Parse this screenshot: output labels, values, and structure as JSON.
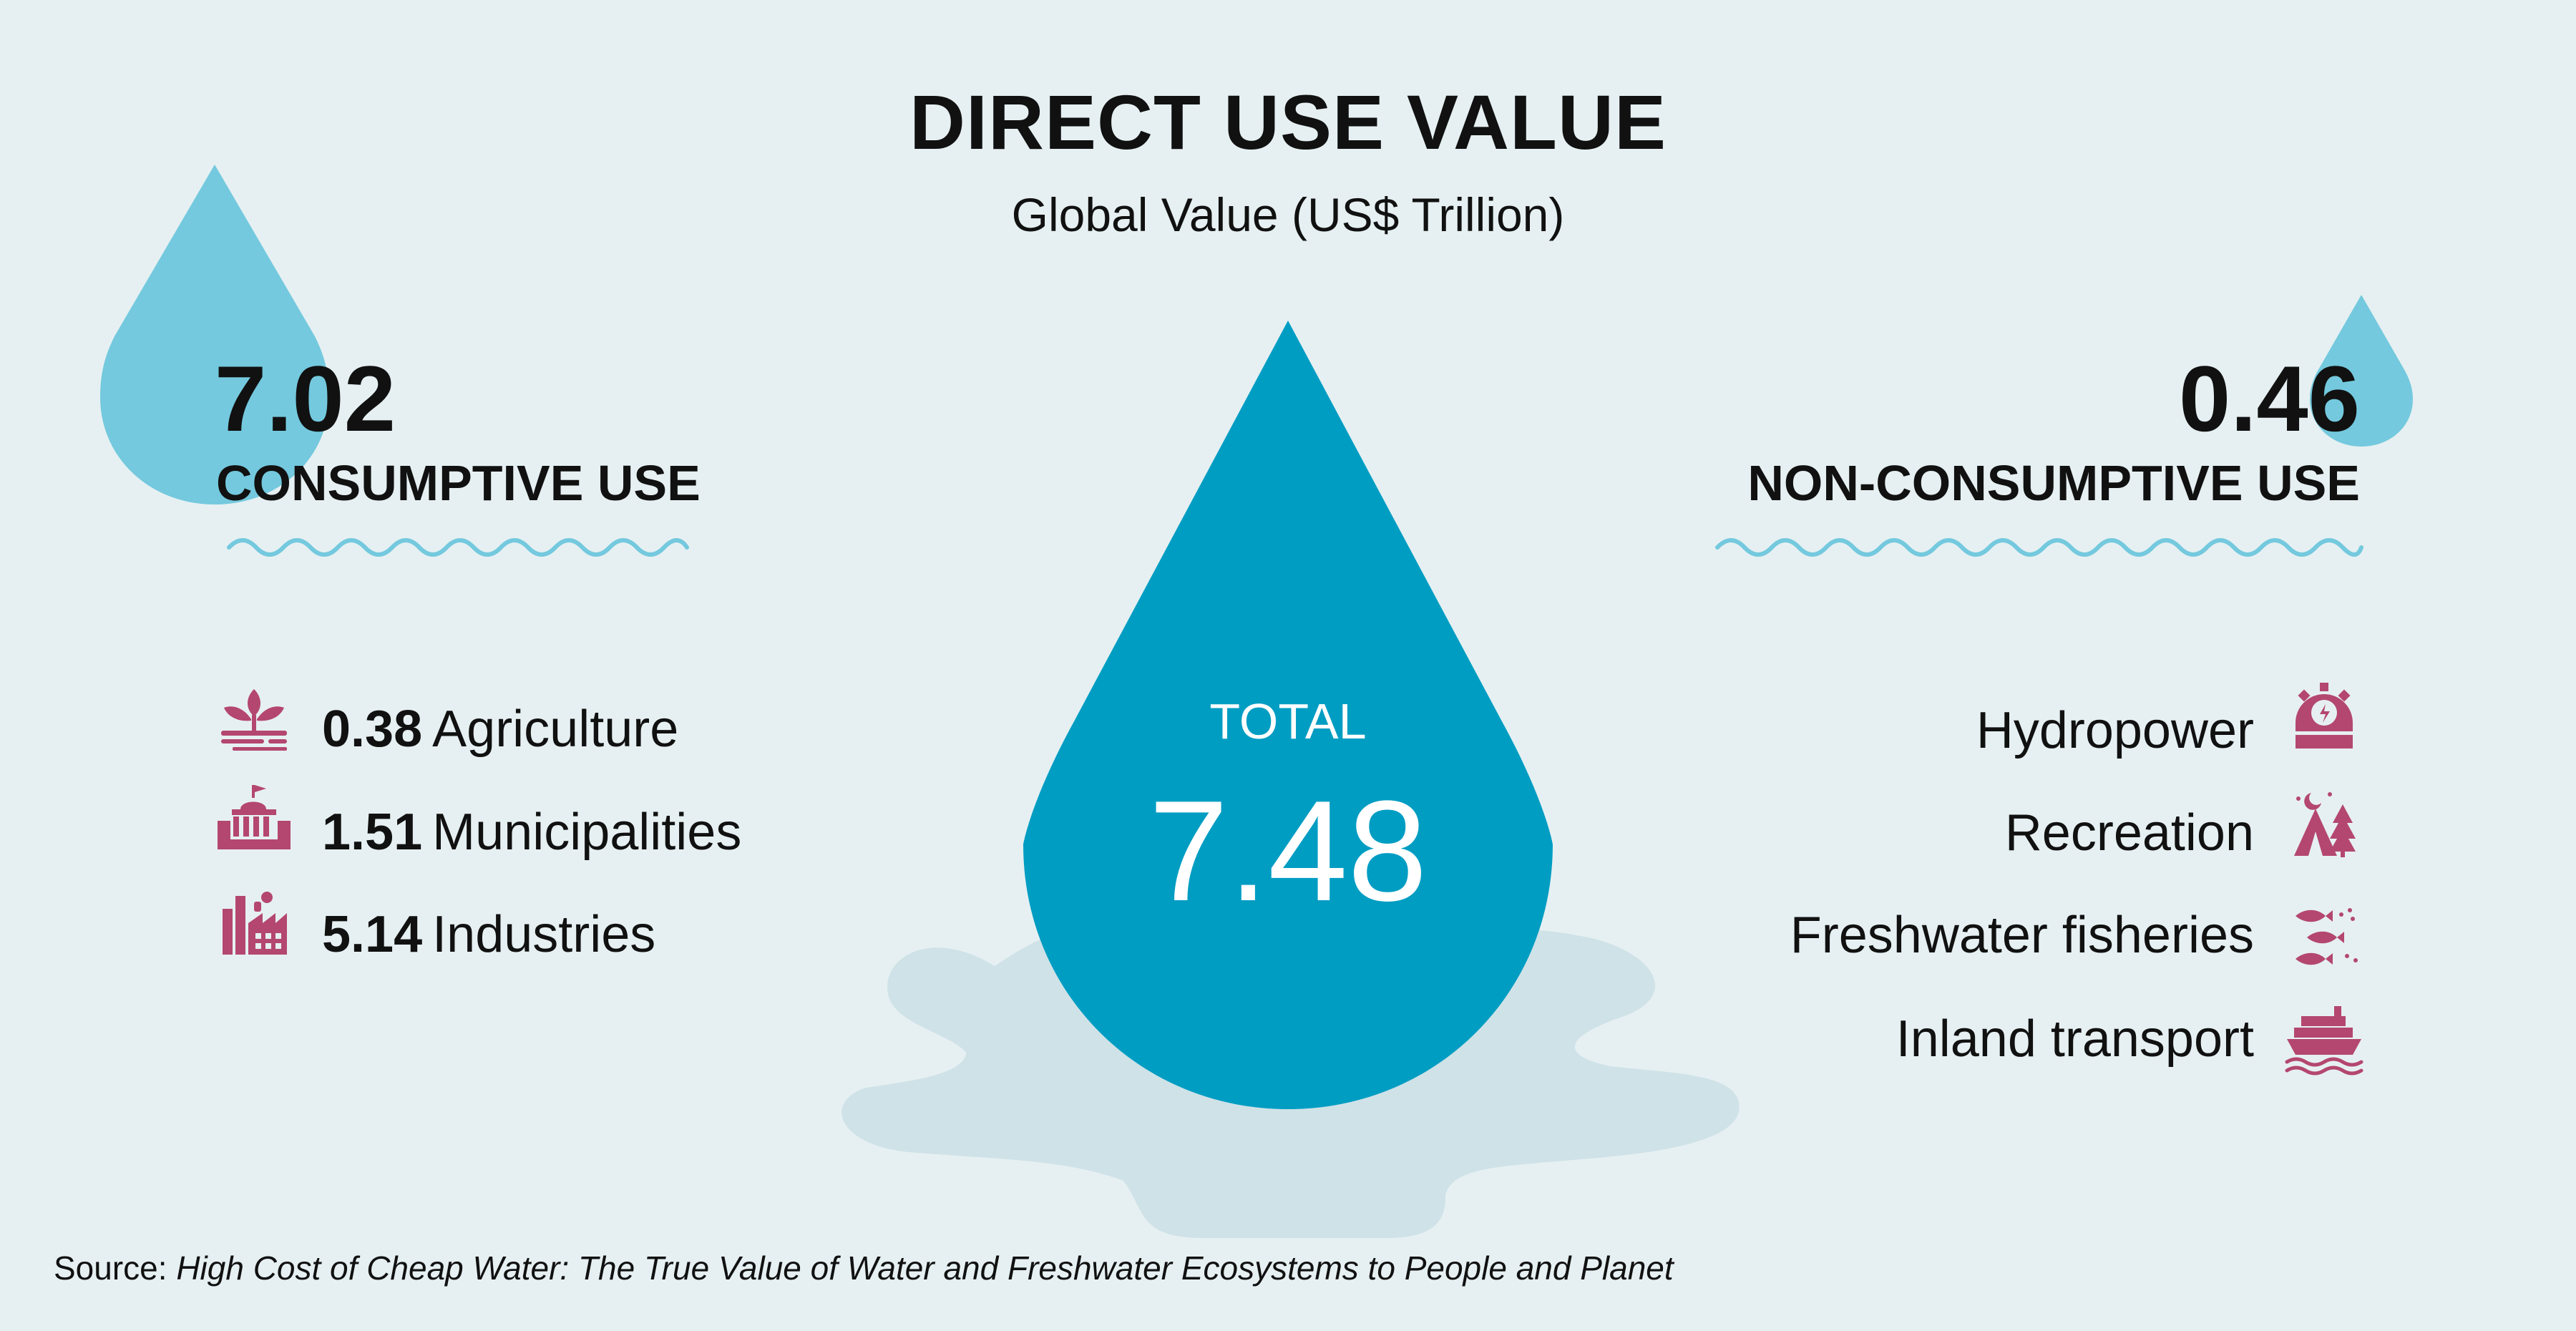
{
  "title": "DIRECT USE VALUE",
  "subtitle": "Global Value (US$ Trillion)",
  "consumptive": {
    "value": "7.02",
    "label": "CONSUMPTIVE USE",
    "items": [
      {
        "value": "0.38",
        "label": "Agriculture",
        "icon": "sprout-icon"
      },
      {
        "value": "1.51",
        "label": "Municipalities",
        "icon": "city-hall-icon"
      },
      {
        "value": "5.14",
        "label": "Industries",
        "icon": "factory-icon"
      }
    ]
  },
  "non_consumptive": {
    "value": "0.46",
    "label": "NON-CONSUMPTIVE USE",
    "items": [
      {
        "label": "Hydropower",
        "icon": "hydropower-icon"
      },
      {
        "label": "Recreation",
        "icon": "tent-tree-icon"
      },
      {
        "label": "Freshwater fisheries",
        "icon": "fish-icon"
      },
      {
        "label": "Inland transport",
        "icon": "ship-icon"
      }
    ]
  },
  "total": {
    "label": "TOTAL",
    "value": "7.48"
  },
  "source": {
    "prefix": "Source: ",
    "title": "High Cost of Cheap Water: The True Value of Water and Freshwater Ecosystems to People and Planet"
  },
  "colors": {
    "background": "#e6f0f2",
    "drop_light": "#74c9de",
    "drop_main": "#009dc3",
    "puddle": "#cfe2e7",
    "icon_accent": "#b4476f",
    "text": "#111111"
  }
}
